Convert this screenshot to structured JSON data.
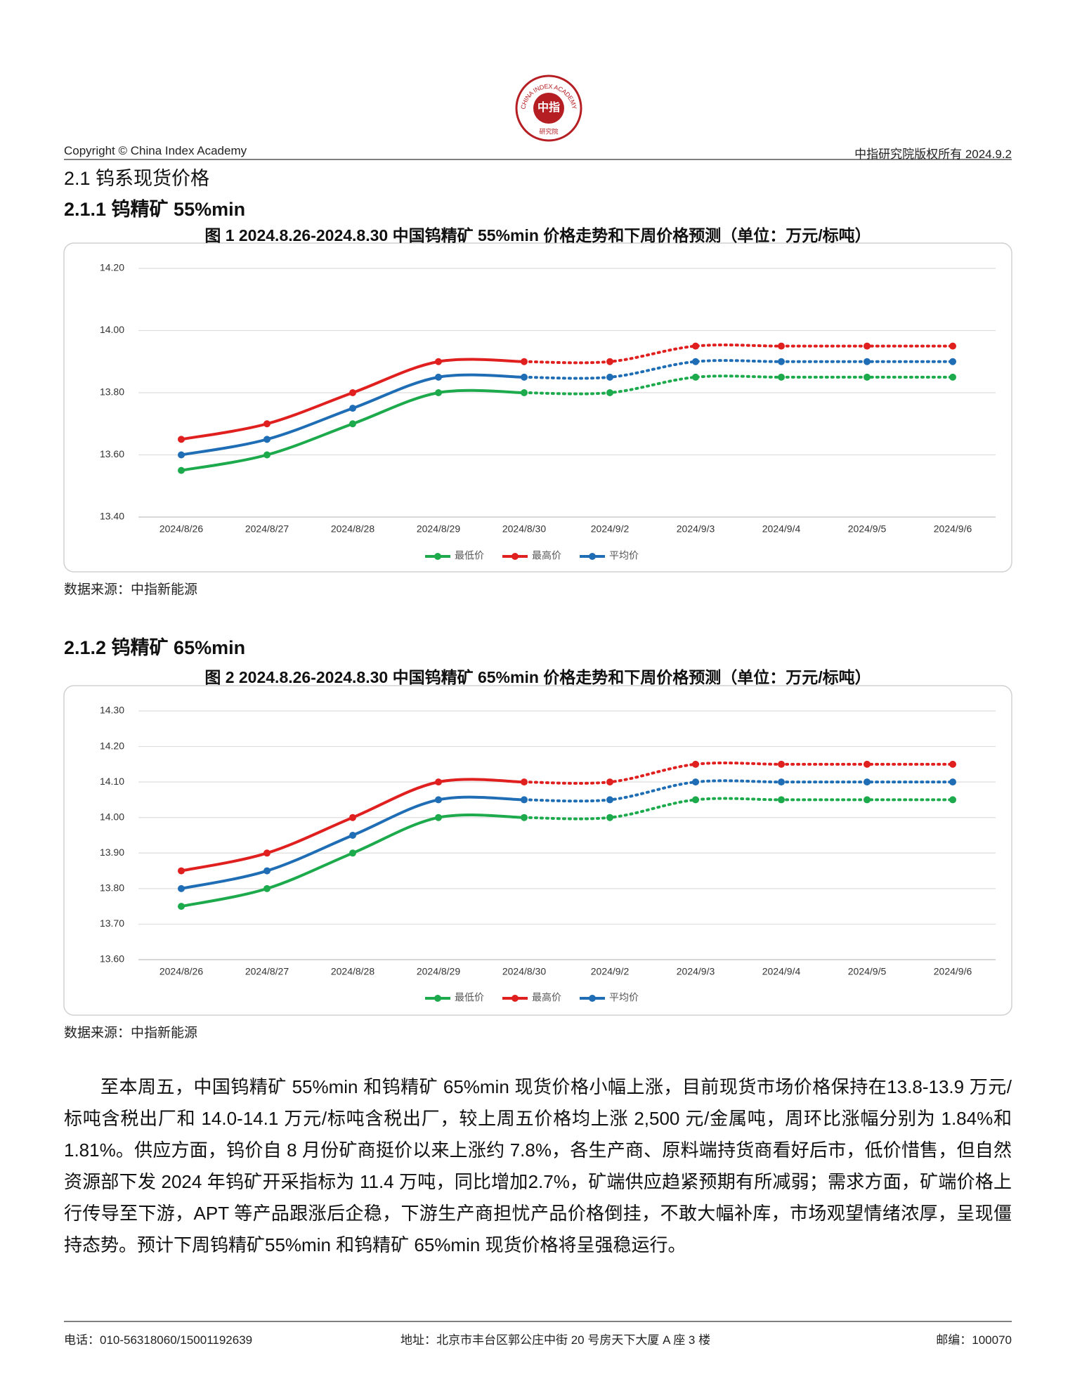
{
  "logo": {
    "ring": "CHINA INDEX ACADEMY",
    "center": "中指",
    "bottom": "研究院"
  },
  "header": {
    "left": "Copyright © China Index Academy",
    "right": "中指研究院版权所有 2024.9.2"
  },
  "section_title": "2.1 钨系现货价格",
  "subsections": [
    "2.1.1 钨精矿 55%min",
    "2.1.2 钨精矿 65%min"
  ],
  "chart_data": [
    {
      "type": "line",
      "title": "图 1 2024.8.26-2024.8.30 中国钨精矿 55%min 价格走势和下周价格预测（单位：万元/标吨）",
      "categories": [
        "2024/8/26",
        "2024/8/27",
        "2024/8/28",
        "2024/8/29",
        "2024/8/30",
        "2024/9/2",
        "2024/9/3",
        "2024/9/4",
        "2024/9/5",
        "2024/9/6"
      ],
      "series": [
        {
          "name": "最低价",
          "color": "#1daa4c",
          "values": [
            13.55,
            13.6,
            13.7,
            13.8,
            13.8,
            13.8,
            13.85,
            13.85,
            13.85,
            13.85
          ]
        },
        {
          "name": "最高价",
          "color": "#e01f1f",
          "values": [
            13.65,
            13.7,
            13.8,
            13.9,
            13.9,
            13.9,
            13.95,
            13.95,
            13.95,
            13.95
          ]
        },
        {
          "name": "平均价",
          "color": "#1f6db4",
          "values": [
            13.6,
            13.65,
            13.75,
            13.85,
            13.85,
            13.85,
            13.9,
            13.9,
            13.9,
            13.9
          ]
        }
      ],
      "forecast_start": 4,
      "ylim": [
        13.4,
        14.2
      ],
      "yticks": [
        {
          "value": 13.4,
          "label": "13.40"
        },
        {
          "value": 13.6,
          "label": "13.60"
        },
        {
          "value": 13.8,
          "label": "13.80"
        },
        {
          "value": 14.0,
          "label": "14.00"
        },
        {
          "value": 14.2,
          "label": "14.20"
        }
      ],
      "grid": true,
      "legend": "bottom",
      "source": "数据来源：中指新能源"
    },
    {
      "type": "line",
      "title": "图 2 2024.8.26-2024.8.30 中国钨精矿 65%min 价格走势和下周价格预测（单位：万元/标吨）",
      "categories": [
        "2024/8/26",
        "2024/8/27",
        "2024/8/28",
        "2024/8/29",
        "2024/8/30",
        "2024/9/2",
        "2024/9/3",
        "2024/9/4",
        "2024/9/5",
        "2024/9/6"
      ],
      "series": [
        {
          "name": "最低价",
          "color": "#1daa4c",
          "values": [
            13.75,
            13.8,
            13.9,
            14.0,
            14.0,
            14.0,
            14.05,
            14.05,
            14.05,
            14.05
          ]
        },
        {
          "name": "最高价",
          "color": "#e01f1f",
          "values": [
            13.85,
            13.9,
            14.0,
            14.1,
            14.1,
            14.1,
            14.15,
            14.15,
            14.15,
            14.15
          ]
        },
        {
          "name": "平均价",
          "color": "#1f6db4",
          "values": [
            13.8,
            13.85,
            13.95,
            14.05,
            14.05,
            14.05,
            14.1,
            14.1,
            14.1,
            14.1
          ]
        }
      ],
      "forecast_start": 4,
      "ylim": [
        13.6,
        14.3
      ],
      "yticks": [
        {
          "value": 13.6,
          "label": "13.60"
        },
        {
          "value": 13.7,
          "label": "13.70"
        },
        {
          "value": 13.8,
          "label": "13.80"
        },
        {
          "value": 13.9,
          "label": "13.90"
        },
        {
          "value": 14.0,
          "label": "14.00"
        },
        {
          "value": 14.1,
          "label": "14.10"
        },
        {
          "value": 14.2,
          "label": "14.20"
        },
        {
          "value": 14.3,
          "label": "14.30"
        }
      ],
      "grid": true,
      "legend": "bottom",
      "source": "数据来源：中指新能源"
    }
  ],
  "paragraph": "至本周五，中国钨精矿 55%min 和钨精矿 65%min 现货价格小幅上涨，目前现货市场价格保持在13.8-13.9 万元/标吨含税出厂和 14.0-14.1 万元/标吨含税出厂，较上周五价格均上涨 2,500 元/金属吨，周环比涨幅分别为 1.84%和 1.81%。供应方面，钨价自 8 月份矿商挺价以来上涨约 7.8%，各生产商、原料端持货商看好后市，低价惜售，但自然资源部下发 2024 年钨矿开采指标为 11.4 万吨，同比增加2.7%，矿端供应趋紧预期有所减弱；需求方面，矿端价格上行传导至下游，APT 等产品跟涨后企稳，下游生产商担忧产品价格倒挂，不敢大幅补库，市场观望情绪浓厚，呈现僵持态势。预计下周钨精矿55%min 和钨精矿 65%min 现货价格将呈强稳运行。",
  "footer": {
    "phone": "电话：010-56318060/15001192639",
    "address": "地址：北京市丰台区郭公庄中街 20 号房天下大厦 A 座 3 楼",
    "postcode": "邮编：100070"
  }
}
